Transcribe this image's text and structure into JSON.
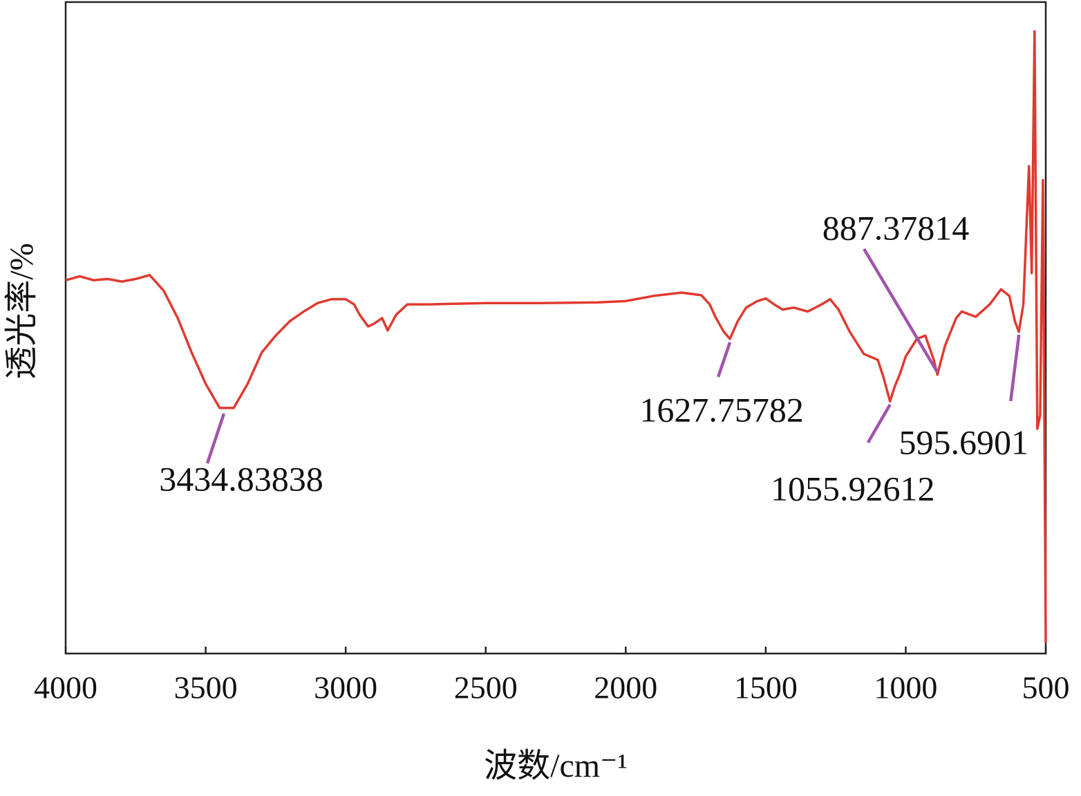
{
  "chart_data": {
    "type": "line",
    "xlabel": "波数/cm⁻¹",
    "ylabel": "透光率/%",
    "xlim": [
      4000,
      500
    ],
    "ylim": [
      0,
      100
    ],
    "xticks": [
      4000,
      3500,
      3000,
      2500,
      2000,
      1500,
      1000,
      500
    ],
    "series": [
      {
        "color": "#e03a30",
        "x": [
          4000,
          3950,
          3900,
          3850,
          3800,
          3750,
          3700,
          3650,
          3600,
          3550,
          3500,
          3450,
          3400,
          3350,
          3300,
          3250,
          3200,
          3150,
          3100,
          3050,
          3000,
          2970,
          2950,
          2920,
          2900,
          2870,
          2850,
          2820,
          2780,
          2700,
          2500,
          2300,
          2100,
          2000,
          1900,
          1800,
          1730,
          1700,
          1680,
          1650,
          1628,
          1600,
          1570,
          1530,
          1500,
          1470,
          1440,
          1400,
          1350,
          1300,
          1270,
          1240,
          1200,
          1150,
          1100,
          1080,
          1056,
          1040,
          1020,
          1000,
          960,
          930,
          900,
          887,
          860,
          820,
          800,
          750,
          700,
          660,
          630,
          610,
          596,
          580,
          560,
          550,
          540,
          530,
          520,
          510,
          500
        ],
        "values": [
          57.3,
          57.9,
          57.3,
          57.5,
          57.1,
          57.5,
          58.1,
          55.7,
          51.5,
          46.2,
          41.4,
          37.7,
          37.7,
          41.4,
          46.2,
          48.8,
          51.0,
          52.5,
          53.8,
          54.4,
          54.4,
          53.6,
          52.0,
          50.2,
          50.6,
          51.5,
          49.6,
          52.0,
          53.6,
          53.6,
          53.8,
          53.8,
          53.9,
          54.1,
          54.9,
          55.4,
          55.0,
          53.6,
          51.7,
          49.4,
          48.3,
          51.0,
          53.1,
          54.1,
          54.5,
          53.6,
          52.8,
          53.1,
          52.5,
          53.6,
          54.4,
          52.8,
          49.4,
          46.0,
          45.1,
          42.5,
          38.7,
          40.9,
          43.0,
          45.6,
          48.3,
          48.8,
          45.1,
          42.8,
          47.2,
          51.5,
          52.5,
          51.7,
          53.6,
          55.9,
          54.9,
          51.0,
          49.4,
          53.6,
          74.8,
          58.4,
          95.5,
          34.5,
          36.6,
          72.7,
          1.6
        ]
      }
    ],
    "annotations": [
      {
        "label": "3434.83838",
        "x": 3434.83838
      },
      {
        "label": "1627.75782",
        "x": 1627.75782
      },
      {
        "label": "1055.92612",
        "x": 1055.92612
      },
      {
        "label": "887.37814",
        "x": 887.37814
      },
      {
        "label": "595.6901",
        "x": 595.6901
      }
    ],
    "annotation_color": "#a055aa"
  }
}
